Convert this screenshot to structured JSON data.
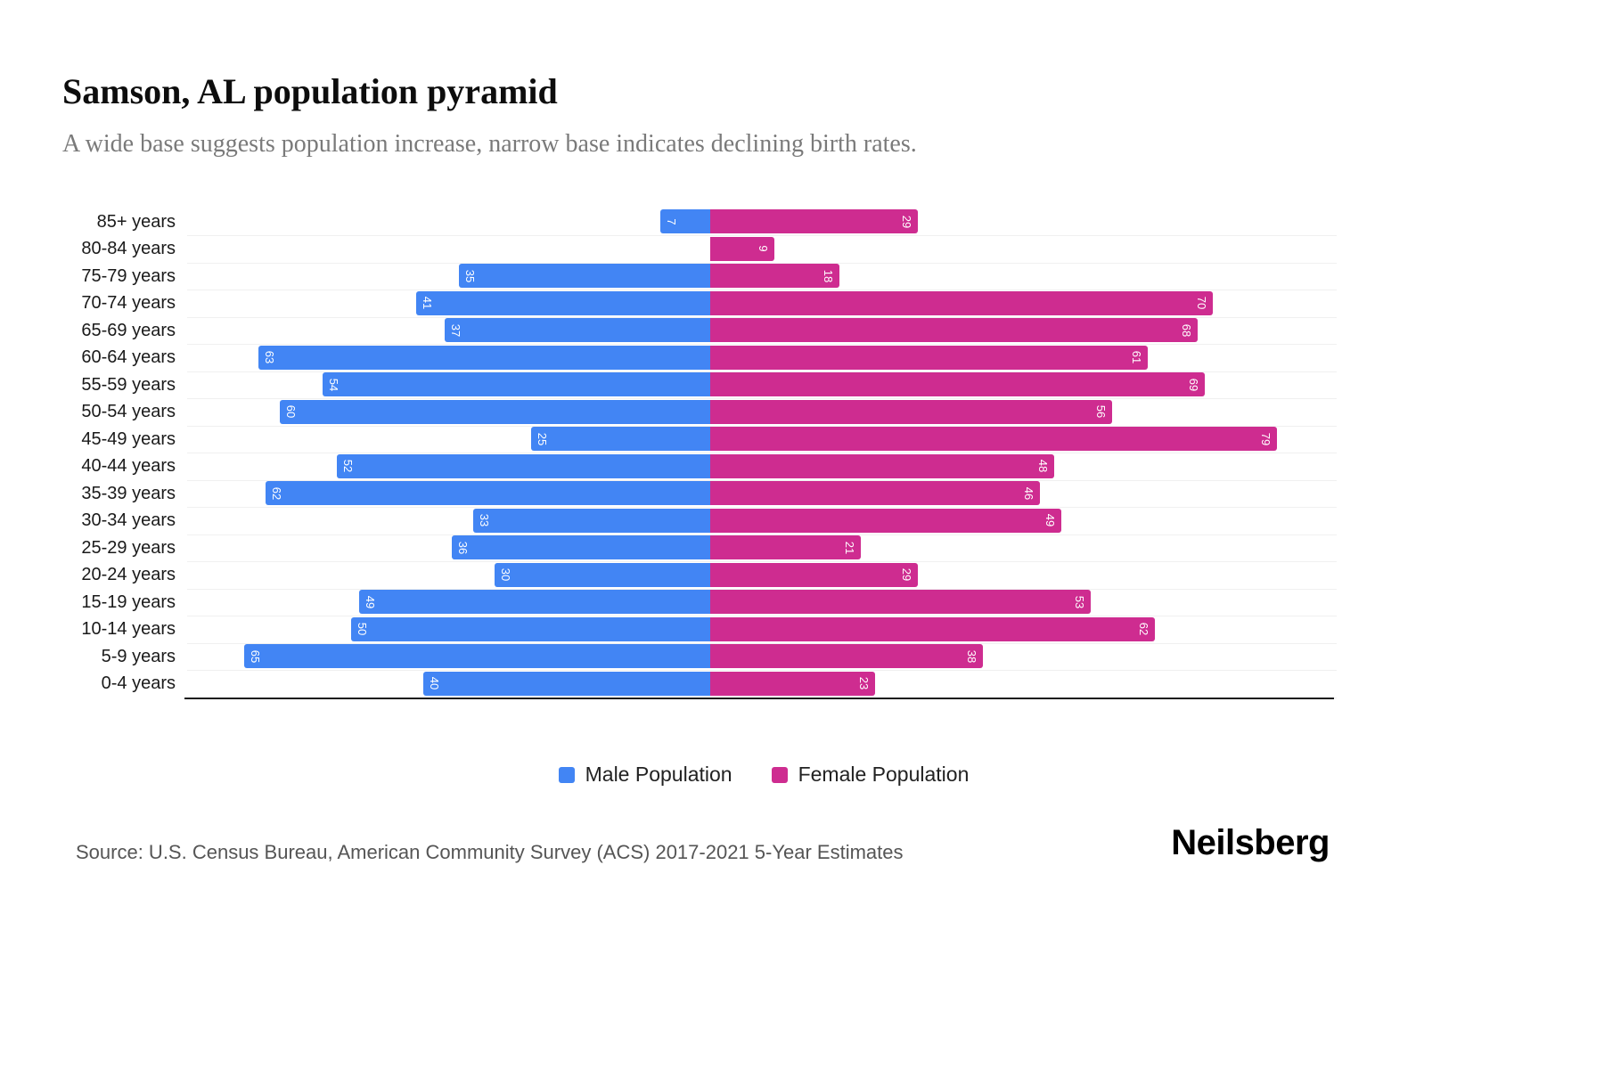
{
  "chart_data": {
    "type": "bar",
    "subtype": "population_pyramid",
    "orientation": "horizontal",
    "title": "Samson, AL population pyramid",
    "subtitle": "A wide base suggests population increase, narrow base indicates declining birth rates.",
    "categories": [
      "85+ years",
      "80-84 years",
      "75-79 years",
      "70-74 years",
      "65-69 years",
      "60-64 years",
      "55-59 years",
      "50-54 years",
      "45-49 years",
      "40-44 years",
      "35-39 years",
      "30-34 years",
      "25-29 years",
      "20-24 years",
      "15-19 years",
      "10-14 years",
      "5-9 years",
      "0-4 years"
    ],
    "series": [
      {
        "name": "Male Population",
        "side": "left",
        "color": "#4285F4",
        "values": [
          7,
          0,
          35,
          41,
          37,
          63,
          54,
          60,
          25,
          52,
          62,
          33,
          36,
          30,
          49,
          50,
          65,
          40
        ]
      },
      {
        "name": "Female Population",
        "side": "right",
        "color": "#CE2C90",
        "values": [
          29,
          9,
          18,
          70,
          68,
          61,
          69,
          56,
          79,
          48,
          46,
          49,
          21,
          29,
          53,
          62,
          38,
          23
        ]
      }
    ],
    "value_labels": "inside_end_rotated_90",
    "xlim_each_side": [
      0,
      80
    ],
    "grid": "horizontal_light",
    "legend_position": "bottom_center"
  },
  "footer": {
    "source": "Source: U.S. Census Bureau, American Community Survey (ACS) 2017-2021 5-Year Estimates",
    "brand": "Neilsberg"
  }
}
